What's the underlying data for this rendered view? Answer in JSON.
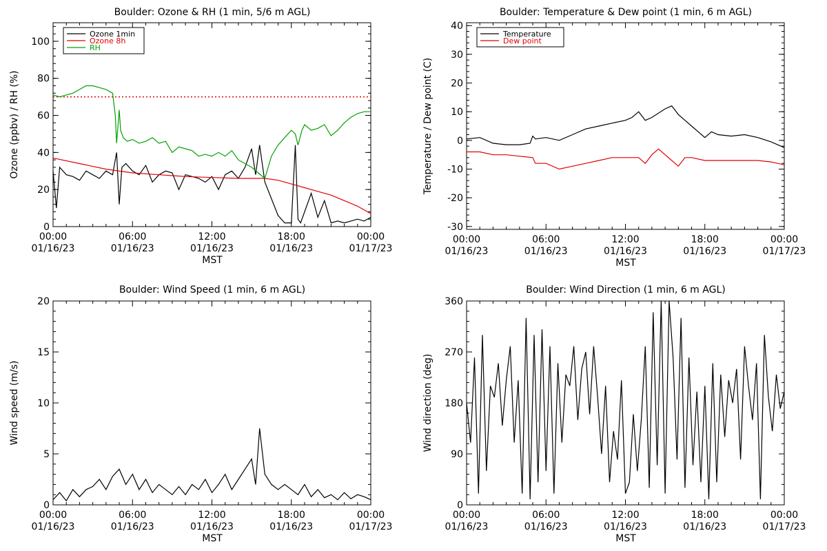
{
  "chart_data": [
    {
      "type": "line",
      "title": "Boulder: Ozone & RH (1 min, 5/6 m AGL)",
      "ylabel": "Ozone (ppbv) / RH (%)",
      "xlabel": "MST",
      "ylim": [
        0,
        110
      ],
      "yticks": [
        "0",
        "20",
        "40",
        "60",
        "80",
        "100"
      ],
      "xticks": [
        {
          "time": "00:00",
          "date": "01/16/23"
        },
        {
          "time": "06:00",
          "date": "01/16/23"
        },
        {
          "time": "12:00",
          "date": "01/16/23"
        },
        {
          "time": "18:00",
          "date": "01/16/23"
        },
        {
          "time": "00:00",
          "date": "01/17/23"
        }
      ],
      "legend_position": "top-left",
      "reference_line": {
        "value": 70,
        "color": "#e00000",
        "style": "dotted"
      },
      "series": [
        {
          "name": "Ozone 1min",
          "color": "#000000",
          "x": [
            0,
            0.25,
            0.5,
            1,
            1.5,
            2,
            2.5,
            3,
            3.5,
            4,
            4.5,
            4.8,
            5,
            5.2,
            5.5,
            6,
            6.5,
            7,
            7.5,
            8,
            8.5,
            9,
            9.5,
            10,
            10.5,
            11,
            11.5,
            12,
            12.5,
            13,
            13.5,
            14,
            14.5,
            15,
            15.3,
            15.6,
            16,
            16.5,
            17,
            17.5,
            18,
            18.3,
            18.5,
            18.7,
            19,
            19.5,
            20,
            20.5,
            21,
            21.5,
            22,
            22.5,
            23,
            23.5,
            24
          ],
          "values": [
            30,
            10,
            32,
            28,
            27,
            25,
            30,
            28,
            26,
            30,
            28,
            40,
            12,
            32,
            34,
            30,
            28,
            33,
            24,
            28,
            30,
            29,
            20,
            28,
            27,
            26,
            24,
            27,
            20,
            28,
            30,
            26,
            32,
            42,
            28,
            44,
            24,
            15,
            6,
            2,
            2,
            44,
            4,
            2,
            8,
            18,
            5,
            14,
            2,
            3,
            2,
            3,
            4,
            3,
            5
          ]
        },
        {
          "name": "Ozone 8h",
          "color": "#e00000",
          "x": [
            0,
            2,
            4,
            6,
            8,
            10,
            12,
            14,
            16,
            17,
            18,
            19,
            20,
            21,
            22,
            23,
            24
          ],
          "values": [
            37,
            34,
            31,
            29,
            28,
            27,
            26.5,
            26,
            26,
            25,
            23,
            21,
            19,
            17,
            14,
            11,
            7
          ]
        },
        {
          "name": "RH",
          "color": "#00a000",
          "x": [
            0,
            0.5,
            1,
            1.5,
            2,
            2.5,
            3,
            3.5,
            4,
            4.5,
            4.7,
            4.8,
            5,
            5.1,
            5.3,
            5.6,
            6,
            6.5,
            7,
            7.5,
            8,
            8.5,
            9,
            9.5,
            10,
            10.5,
            11,
            11.5,
            12,
            12.5,
            13,
            13.5,
            14,
            14.5,
            15,
            15.5,
            16,
            16.5,
            17,
            17.5,
            18,
            18.3,
            18.5,
            18.8,
            19,
            19.5,
            20,
            20.5,
            21,
            21.5,
            22,
            22.5,
            23,
            23.5,
            24
          ],
          "values": [
            71,
            70,
            71,
            72,
            74,
            76,
            76,
            75,
            74,
            72,
            60,
            45,
            63,
            52,
            48,
            46,
            47,
            45,
            46,
            48,
            45,
            46,
            40,
            43,
            42,
            41,
            38,
            39,
            38,
            40,
            38,
            41,
            36,
            34,
            32,
            29,
            26,
            38,
            44,
            48,
            52,
            50,
            44,
            52,
            55,
            52,
            53,
            55,
            49,
            52,
            56,
            59,
            61,
            62,
            62
          ]
        }
      ]
    },
    {
      "type": "line",
      "title": "Boulder: Temperature & Dew point (1 min, 6 m AGL)",
      "ylabel": "Temperature / Dew point (C)",
      "xlabel": "MST",
      "ylim": [
        -31,
        41
      ],
      "yticks": [
        "-30",
        "-20",
        "-10",
        "0",
        "10",
        "20",
        "30",
        "40"
      ],
      "xticks": [
        {
          "time": "00:00",
          "date": "01/16/23"
        },
        {
          "time": "06:00",
          "date": "01/16/23"
        },
        {
          "time": "12:00",
          "date": "01/16/23"
        },
        {
          "time": "18:00",
          "date": "01/16/23"
        },
        {
          "time": "00:00",
          "date": "01/17/23"
        }
      ],
      "legend_position": "top-left",
      "series": [
        {
          "name": "Temperature",
          "color": "#000000",
          "x": [
            0,
            1,
            2,
            3,
            4,
            4.8,
            5,
            5.2,
            6,
            7,
            8,
            9,
            10,
            11,
            12,
            12.5,
            13,
            13.5,
            14,
            15,
            15.5,
            16,
            16.5,
            17,
            17.5,
            18,
            18.5,
            19,
            20,
            21,
            22,
            23,
            24
          ],
          "values": [
            0.5,
            1,
            -1,
            -1.5,
            -1.5,
            -1,
            1.5,
            0.5,
            1,
            0,
            2,
            4,
            5,
            6,
            7,
            8,
            10,
            7,
            8,
            11,
            12,
            9,
            7,
            5,
            3,
            1,
            3,
            2,
            1.5,
            2,
            1,
            -0.5,
            -2.5
          ]
        },
        {
          "name": "Dew point",
          "color": "#e00000",
          "x": [
            0,
            1,
            2,
            3,
            4,
            5,
            5.2,
            6,
            7,
            8,
            9,
            10,
            11,
            12,
            13,
            13.5,
            14,
            14.5,
            15,
            15.5,
            16,
            16.5,
            17,
            18,
            19,
            20,
            21,
            22,
            23,
            24
          ],
          "values": [
            -4,
            -4,
            -5,
            -5,
            -5.5,
            -6,
            -8,
            -8,
            -10,
            -9,
            -8,
            -7,
            -6,
            -6,
            -6,
            -8,
            -5,
            -3,
            -5,
            -7,
            -9,
            -6,
            -6,
            -7,
            -7,
            -7,
            -7,
            -7,
            -7.5,
            -8.5
          ]
        }
      ]
    },
    {
      "type": "line",
      "title": "Boulder: Wind Speed (1 min, 6 m AGL)",
      "ylabel": "Wind speed (m/s)",
      "xlabel": "MST",
      "ylim": [
        0,
        20
      ],
      "yticks": [
        "0",
        "5",
        "10",
        "15",
        "20"
      ],
      "xticks": [
        {
          "time": "00:00",
          "date": "01/16/23"
        },
        {
          "time": "06:00",
          "date": "01/16/23"
        },
        {
          "time": "12:00",
          "date": "01/16/23"
        },
        {
          "time": "18:00",
          "date": "01/16/23"
        },
        {
          "time": "00:00",
          "date": "01/17/23"
        }
      ],
      "series": [
        {
          "name": "",
          "color": "#000000",
          "x": [
            0,
            0.5,
            1,
            1.5,
            2,
            2.5,
            3,
            3.5,
            4,
            4.5,
            5,
            5.5,
            6,
            6.5,
            7,
            7.5,
            8,
            8.5,
            9,
            9.5,
            10,
            10.5,
            11,
            11.5,
            12,
            12.5,
            13,
            13.5,
            14,
            14.5,
            15,
            15.3,
            15.6,
            16,
            16.5,
            17,
            17.5,
            18,
            18.5,
            19,
            19.5,
            20,
            20.5,
            21,
            21.5,
            22,
            22.5,
            23,
            23.5,
            24
          ],
          "values": [
            0.5,
            1.2,
            0.4,
            1.5,
            0.8,
            1.5,
            1.8,
            2.5,
            1.5,
            2.8,
            3.5,
            2,
            3,
            1.5,
            2.5,
            1.2,
            2,
            1.5,
            1,
            1.8,
            1,
            2,
            1.5,
            2.5,
            1.2,
            2,
            3,
            1.5,
            2.5,
            3.5,
            4.5,
            2,
            7.5,
            3,
            2,
            1.5,
            2,
            1.5,
            1,
            2,
            0.8,
            1.5,
            0.7,
            1,
            0.5,
            1.2,
            0.6,
            1,
            0.8,
            0.5
          ]
        }
      ]
    },
    {
      "type": "line",
      "title": "Boulder: Wind Direction (1 min, 6 m AGL)",
      "ylabel": "Wind direction (deg)",
      "xlabel": "MST",
      "ylim": [
        0,
        360
      ],
      "yticks": [
        "0",
        "90",
        "180",
        "270",
        "360"
      ],
      "xticks": [
        {
          "time": "00:00",
          "date": "01/16/23"
        },
        {
          "time": "06:00",
          "date": "01/16/23"
        },
        {
          "time": "12:00",
          "date": "01/16/23"
        },
        {
          "time": "18:00",
          "date": "01/16/23"
        },
        {
          "time": "00:00",
          "date": "01/17/23"
        }
      ],
      "series": [
        {
          "name": "",
          "color": "#000000",
          "x": [
            0,
            0.3,
            0.6,
            0.9,
            1.2,
            1.5,
            1.8,
            2.1,
            2.4,
            2.7,
            3,
            3.3,
            3.6,
            3.9,
            4.2,
            4.5,
            4.8,
            5.1,
            5.4,
            5.7,
            6,
            6.3,
            6.6,
            6.9,
            7.2,
            7.5,
            7.8,
            8.1,
            8.4,
            8.7,
            9,
            9.3,
            9.6,
            9.9,
            10.2,
            10.5,
            10.8,
            11.1,
            11.4,
            11.7,
            12,
            12.3,
            12.6,
            12.9,
            13.2,
            13.5,
            13.8,
            14.1,
            14.4,
            14.7,
            15,
            15.3,
            15.6,
            15.9,
            16.2,
            16.5,
            16.8,
            17.1,
            17.4,
            17.7,
            18,
            18.3,
            18.6,
            18.9,
            19.2,
            19.5,
            19.8,
            20.1,
            20.4,
            20.7,
            21,
            21.3,
            21.6,
            21.9,
            22.2,
            22.5,
            22.8,
            23.1,
            23.4,
            23.7,
            24
          ],
          "values": [
            180,
            110,
            260,
            20,
            300,
            60,
            210,
            190,
            250,
            140,
            220,
            280,
            110,
            220,
            20,
            330,
            10,
            300,
            40,
            310,
            60,
            280,
            20,
            250,
            110,
            230,
            210,
            280,
            150,
            240,
            270,
            160,
            280,
            190,
            90,
            210,
            40,
            130,
            80,
            220,
            20,
            40,
            160,
            60,
            150,
            280,
            30,
            340,
            70,
            360,
            20,
            360,
            260,
            80,
            330,
            30,
            260,
            70,
            200,
            40,
            210,
            10,
            250,
            40,
            230,
            120,
            220,
            180,
            240,
            80,
            280,
            210,
            150,
            250,
            10,
            300,
            190,
            130,
            230,
            170,
            200
          ]
        }
      ]
    }
  ]
}
